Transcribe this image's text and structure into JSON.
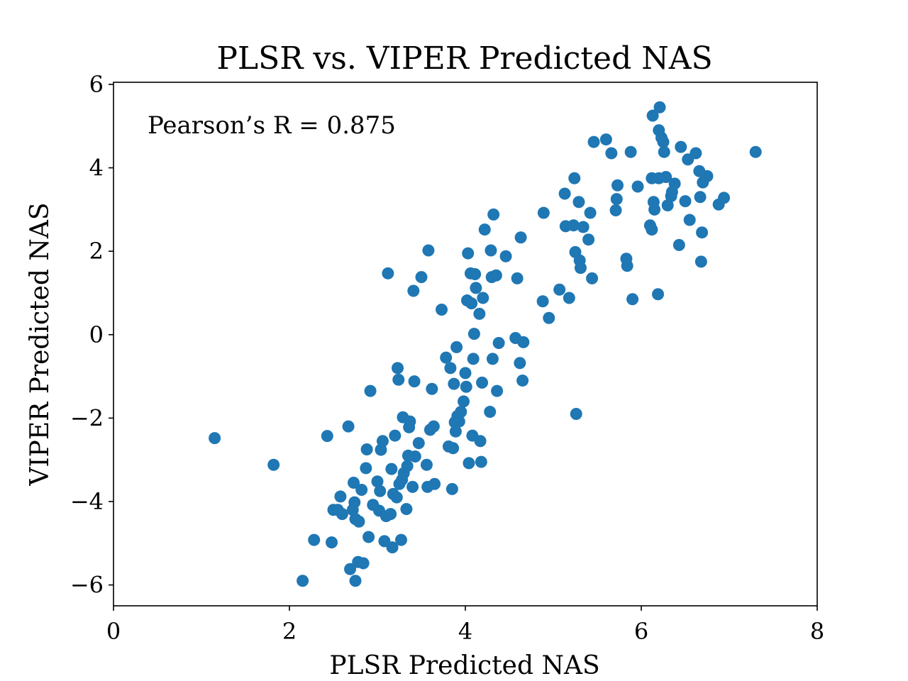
{
  "chart_data": {
    "type": "scatter",
    "title": "PLSR vs. VIPER Predicted NAS",
    "xlabel": "PLSR Predicted NAS",
    "ylabel": "VIPER Predicted NAS",
    "annotation": "Pearson’s R = 0.875",
    "xlim": [
      0,
      8
    ],
    "ylim": [
      -6.5,
      6.05
    ],
    "xticks": [
      0,
      2,
      4,
      6,
      8
    ],
    "xtick_labels": [
      "0",
      "2",
      "4",
      "6",
      "8"
    ],
    "yticks": [
      -6,
      -4,
      -2,
      0,
      2,
      4,
      6
    ],
    "ytick_labels": [
      "−6",
      "−4",
      "−2",
      "0",
      "2",
      "4",
      "6"
    ],
    "grid": false,
    "legend": "none",
    "marker_color": "#1f77b4",
    "series": [
      {
        "points": [
          [
            1.15,
            -2.48
          ],
          [
            1.82,
            -3.12
          ],
          [
            2.15,
            -5.9
          ],
          [
            2.28,
            -4.92
          ],
          [
            2.43,
            -2.43
          ],
          [
            2.48,
            -4.98
          ],
          [
            2.5,
            -4.2
          ],
          [
            2.55,
            -4.2
          ],
          [
            2.58,
            -3.88
          ],
          [
            2.6,
            -4.3
          ],
          [
            2.67,
            -2.2
          ],
          [
            2.69,
            -5.62
          ],
          [
            2.72,
            -4.2
          ],
          [
            2.73,
            -3.55
          ],
          [
            2.74,
            -4.02
          ],
          [
            2.75,
            -4.42
          ],
          [
            2.75,
            -5.9
          ],
          [
            2.78,
            -5.45
          ],
          [
            2.79,
            -4.48
          ],
          [
            2.82,
            -3.72
          ],
          [
            2.84,
            -5.48
          ],
          [
            2.87,
            -3.2
          ],
          [
            2.88,
            -2.75
          ],
          [
            2.9,
            -4.85
          ],
          [
            2.92,
            -1.35
          ],
          [
            2.95,
            -4.08
          ],
          [
            3.0,
            -3.52
          ],
          [
            3.02,
            -4.22
          ],
          [
            3.03,
            -3.75
          ],
          [
            3.04,
            -2.76
          ],
          [
            3.06,
            -2.55
          ],
          [
            3.08,
            -4.95
          ],
          [
            3.1,
            -4.35
          ],
          [
            3.12,
            1.47
          ],
          [
            3.15,
            -4.3
          ],
          [
            3.16,
            -3.22
          ],
          [
            3.17,
            -5.1
          ],
          [
            3.18,
            -3.82
          ],
          [
            3.2,
            -2.42
          ],
          [
            3.22,
            -3.9
          ],
          [
            3.23,
            -0.8
          ],
          [
            3.24,
            -1.08
          ],
          [
            3.25,
            -3.58
          ],
          [
            3.27,
            -4.92
          ],
          [
            3.28,
            -3.48
          ],
          [
            3.29,
            -1.98
          ],
          [
            3.3,
            -3.32
          ],
          [
            3.33,
            -4.18
          ],
          [
            3.34,
            -3.15
          ],
          [
            3.35,
            -2.9
          ],
          [
            3.36,
            -2.22
          ],
          [
            3.37,
            -2.08
          ],
          [
            3.4,
            -3.65
          ],
          [
            3.41,
            1.05
          ],
          [
            3.42,
            -1.12
          ],
          [
            3.43,
            -2.92
          ],
          [
            3.47,
            -2.6
          ],
          [
            3.5,
            1.38
          ],
          [
            3.56,
            -3.12
          ],
          [
            3.57,
            -3.65
          ],
          [
            3.58,
            2.02
          ],
          [
            3.6,
            -2.28
          ],
          [
            3.62,
            -1.3
          ],
          [
            3.64,
            -2.2
          ],
          [
            3.65,
            -3.58
          ],
          [
            3.73,
            0.6
          ],
          [
            3.78,
            -0.55
          ],
          [
            3.81,
            -2.68
          ],
          [
            3.83,
            -0.8
          ],
          [
            3.85,
            -3.7
          ],
          [
            3.86,
            -2.72
          ],
          [
            3.87,
            -1.18
          ],
          [
            3.88,
            -2.1
          ],
          [
            3.89,
            -2.32
          ],
          [
            3.9,
            -0.3
          ],
          [
            3.91,
            -1.95
          ],
          [
            3.93,
            -2.08
          ],
          [
            3.95,
            -1.85
          ],
          [
            3.98,
            -1.6
          ],
          [
            4.0,
            -0.92
          ],
          [
            4.01,
            -1.25
          ],
          [
            4.02,
            0.82
          ],
          [
            4.03,
            1.95
          ],
          [
            4.04,
            -3.08
          ],
          [
            4.06,
            1.47
          ],
          [
            4.07,
            0.75
          ],
          [
            4.08,
            -2.42
          ],
          [
            4.09,
            -0.58
          ],
          [
            4.1,
            0.02
          ],
          [
            4.11,
            1.45
          ],
          [
            4.12,
            1.12
          ],
          [
            4.16,
            0.5
          ],
          [
            4.17,
            -2.55
          ],
          [
            4.18,
            -3.05
          ],
          [
            4.19,
            -1.15
          ],
          [
            4.2,
            0.88
          ],
          [
            4.22,
            2.52
          ],
          [
            4.28,
            -1.85
          ],
          [
            4.29,
            2.02
          ],
          [
            4.3,
            1.38
          ],
          [
            4.31,
            -0.58
          ],
          [
            4.32,
            2.88
          ],
          [
            4.35,
            1.42
          ],
          [
            4.36,
            -1.35
          ],
          [
            4.38,
            -0.2
          ],
          [
            4.46,
            1.88
          ],
          [
            4.57,
            -0.08
          ],
          [
            4.59,
            1.35
          ],
          [
            4.62,
            -0.68
          ],
          [
            4.63,
            2.33
          ],
          [
            4.65,
            -1.1
          ],
          [
            4.66,
            -0.18
          ],
          [
            4.88,
            0.8
          ],
          [
            4.89,
            2.92
          ],
          [
            4.95,
            0.4
          ],
          [
            5.07,
            1.08
          ],
          [
            5.13,
            3.38
          ],
          [
            5.14,
            2.6
          ],
          [
            5.18,
            0.88
          ],
          [
            5.23,
            2.62
          ],
          [
            5.24,
            3.75
          ],
          [
            5.25,
            1.98
          ],
          [
            5.26,
            -1.9
          ],
          [
            5.29,
            3.18
          ],
          [
            5.3,
            1.78
          ],
          [
            5.31,
            1.6
          ],
          [
            5.34,
            2.58
          ],
          [
            5.4,
            2.28
          ],
          [
            5.42,
            2.92
          ],
          [
            5.44,
            1.35
          ],
          [
            5.46,
            4.62
          ],
          [
            5.6,
            4.68
          ],
          [
            5.66,
            4.35
          ],
          [
            5.71,
            2.98
          ],
          [
            5.72,
            3.25
          ],
          [
            5.73,
            3.58
          ],
          [
            5.83,
            1.82
          ],
          [
            5.84,
            1.65
          ],
          [
            5.88,
            4.38
          ],
          [
            5.9,
            0.85
          ],
          [
            5.96,
            3.55
          ],
          [
            6.1,
            2.62
          ],
          [
            6.12,
            2.52
          ],
          [
            6.12,
            3.75
          ],
          [
            6.13,
            5.25
          ],
          [
            6.14,
            3.18
          ],
          [
            6.15,
            3.0
          ],
          [
            6.19,
            0.97
          ],
          [
            6.2,
            3.75
          ],
          [
            6.2,
            4.9
          ],
          [
            6.21,
            5.45
          ],
          [
            6.23,
            4.72
          ],
          [
            6.25,
            4.62
          ],
          [
            6.26,
            4.38
          ],
          [
            6.28,
            3.78
          ],
          [
            6.3,
            3.1
          ],
          [
            6.34,
            3.32
          ],
          [
            6.35,
            3.42
          ],
          [
            6.38,
            3.62
          ],
          [
            6.43,
            2.15
          ],
          [
            6.45,
            4.5
          ],
          [
            6.5,
            3.2
          ],
          [
            6.53,
            4.2
          ],
          [
            6.55,
            2.75
          ],
          [
            6.62,
            4.35
          ],
          [
            6.66,
            3.92
          ],
          [
            6.67,
            3.3
          ],
          [
            6.68,
            1.75
          ],
          [
            6.69,
            2.45
          ],
          [
            6.7,
            3.65
          ],
          [
            6.75,
            3.8
          ],
          [
            6.88,
            3.12
          ],
          [
            6.94,
            3.28
          ],
          [
            7.3,
            4.38
          ]
        ]
      }
    ]
  }
}
